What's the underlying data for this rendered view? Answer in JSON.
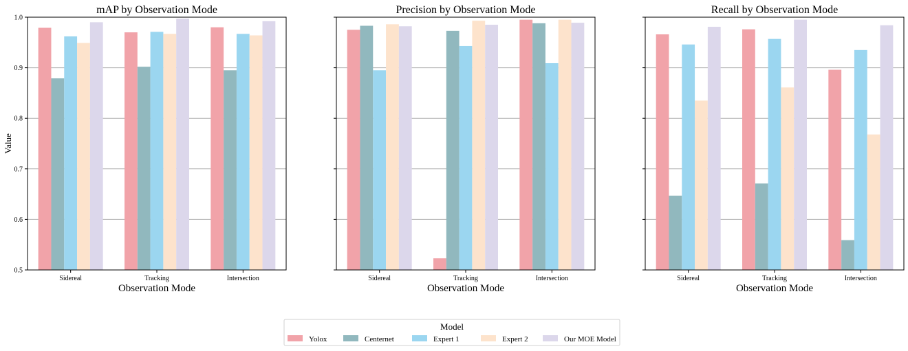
{
  "legend": {
    "title": "Model",
    "entries": [
      "Yolox",
      "Centernet",
      "Expert 1",
      "Expert 2",
      "Our MOE Model"
    ],
    "colors": [
      "#f1a3a9",
      "#91b8be",
      "#9bd6f0",
      "#fde3cc",
      "#dcd7eb"
    ]
  },
  "chart_data": [
    {
      "type": "bar",
      "title": "mAP by Observation Mode",
      "xlabel": "Observation Mode",
      "ylabel": "Value",
      "ylim": [
        0.5,
        1.0
      ],
      "yticks": [
        "0.5",
        "0.6",
        "0.7",
        "0.8",
        "0.9",
        "1.0"
      ],
      "grid": true,
      "categories": [
        "Sidereal",
        "Tracking",
        "Intersection"
      ],
      "series": [
        {
          "name": "Yolox",
          "values": [
            0.979,
            0.97,
            0.98
          ]
        },
        {
          "name": "Centernet",
          "values": [
            0.879,
            0.902,
            0.895
          ]
        },
        {
          "name": "Expert 1",
          "values": [
            0.962,
            0.971,
            0.967
          ]
        },
        {
          "name": "Expert 2",
          "values": [
            0.949,
            0.967,
            0.964
          ]
        },
        {
          "name": "Our MOE Model",
          "values": [
            0.99,
            0.997,
            0.992
          ]
        }
      ]
    },
    {
      "type": "bar",
      "title": "Precision by Observation Mode",
      "xlabel": "Observation Mode",
      "ylabel": "",
      "ylim": [
        0.5,
        1.0
      ],
      "yticks": [],
      "grid": true,
      "categories": [
        "Sidereal",
        "Tracking",
        "Intersection"
      ],
      "series": [
        {
          "name": "Yolox",
          "values": [
            0.975,
            0.523,
            0.995
          ]
        },
        {
          "name": "Centernet",
          "values": [
            0.983,
            0.973,
            0.988
          ]
        },
        {
          "name": "Expert 1",
          "values": [
            0.895,
            0.943,
            0.909
          ]
        },
        {
          "name": "Expert 2",
          "values": [
            0.986,
            0.993,
            0.995
          ]
        },
        {
          "name": "Our MOE Model",
          "values": [
            0.982,
            0.985,
            0.989
          ]
        }
      ]
    },
    {
      "type": "bar",
      "title": "Recall by Observation Mode",
      "xlabel": "Observation Mode",
      "ylabel": "",
      "ylim": [
        0.5,
        1.0
      ],
      "yticks": [],
      "grid": true,
      "categories": [
        "Sidereal",
        "Tracking",
        "Intersection"
      ],
      "series": [
        {
          "name": "Yolox",
          "values": [
            0.966,
            0.976,
            0.896
          ]
        },
        {
          "name": "Centernet",
          "values": [
            0.647,
            0.671,
            0.559
          ]
        },
        {
          "name": "Expert 1",
          "values": [
            0.946,
            0.957,
            0.935
          ]
        },
        {
          "name": "Expert 2",
          "values": [
            0.835,
            0.861,
            0.768
          ]
        },
        {
          "name": "Our MOE Model",
          "values": [
            0.981,
            0.995,
            0.984
          ]
        }
      ]
    }
  ]
}
